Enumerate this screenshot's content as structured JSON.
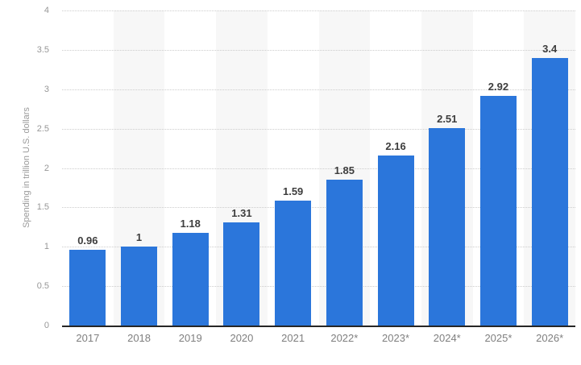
{
  "chart_data": {
    "type": "bar",
    "categories": [
      "2017",
      "2018",
      "2019",
      "2020",
      "2021",
      "2022*",
      "2023*",
      "2024*",
      "2025*",
      "2026*"
    ],
    "values": [
      0.96,
      1,
      1.18,
      1.31,
      1.59,
      1.85,
      2.16,
      2.51,
      2.92,
      3.4
    ],
    "value_labels": [
      "0.96",
      "1",
      "1.18",
      "1.31",
      "1.59",
      "1.85",
      "2.16",
      "2.51",
      "2.92",
      "3.4"
    ],
    "xlabel": "",
    "ylabel": "Spending in trillion U.S. dollars",
    "ylim": [
      0,
      4
    ],
    "ytick_step": 0.5,
    "yticks": [
      "0",
      "0.5",
      "1",
      "1.5",
      "2",
      "2.5",
      "3",
      "3.5",
      "4"
    ],
    "grid": "horizontal-dotted",
    "legend": "none",
    "bar_label_position": "above",
    "striped_category_indices": [
      1,
      3,
      5,
      7,
      9
    ],
    "colors": {
      "bar": "#2b76db",
      "stripe": "#f7f7f7",
      "gridline": "#cccccc",
      "axis_line": "#262626",
      "value_label": "#3d3d3d",
      "tick_label": "#979797",
      "axis_title": "#9a9a9a",
      "background": "#ffffff"
    }
  }
}
